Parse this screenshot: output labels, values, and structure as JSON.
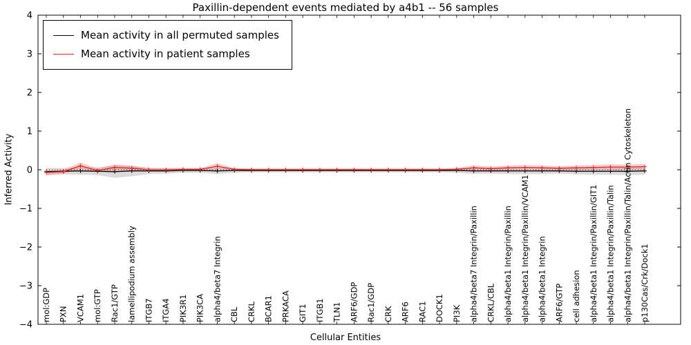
{
  "chart_data": {
    "type": "line",
    "title": "Paxillin-dependent events mediated by a4b1 -- 56 samples",
    "xlabel": "Cellular Entities",
    "ylabel": "Inferred Activity",
    "ylim": [
      -4,
      4
    ],
    "yticks": [
      -4,
      -3,
      -2,
      -1,
      0,
      1,
      2,
      3,
      4
    ],
    "grid": false,
    "legend_position": "upper left",
    "legend": [
      {
        "label": "Mean activity in all permuted samples",
        "color": "#000000"
      },
      {
        "label": "Mean activity in patient samples",
        "color": "#dd2222"
      }
    ],
    "categories": [
      "mol:GDP",
      "PXN",
      "VCAM1",
      "mol:GTP",
      "Rac1/GTP",
      "lamellipodium assembly",
      "ITGB7",
      "ITGA4",
      "PIK3R1",
      "PIK3CA",
      "alpha4/beta7 Integrin",
      "CBL",
      "CRKL",
      "BCAR1",
      "PRKACA",
      "GIT1",
      "ITGB1",
      "TLN1",
      "ARF6/GDP",
      "Rac1/GDP",
      "CRK",
      "ARF6",
      "RAC1",
      "DOCK1",
      "PI3K",
      "alpha4/beta7 Integrin/Paxillin",
      "CRKL/CBL",
      "alpha4/beta1 Integrin/Paxillin",
      "alpha4/beta1 Integrin/Paxillin/VCAM1",
      "alpha4/beta1 Integrin",
      "ARF6/GTP",
      "cell adhesion",
      "alpha4/beta1 Integrin/Paxillin/GIT1",
      "alpha4/beta1 Integrin/Paxillin/Talin",
      "alpha4/beta1 Integrin/Paxillin/Talin/Actin Cytoskeleton",
      "p130Cas/Crk/Dock1"
    ],
    "series": [
      {
        "name": "Mean activity in all permuted samples",
        "color": "#000000",
        "band_color": "#999999",
        "values": [
          -0.05,
          -0.04,
          -0.03,
          -0.04,
          -0.05,
          -0.03,
          -0.03,
          -0.03,
          -0.02,
          -0.02,
          -0.03,
          -0.02,
          -0.02,
          -0.02,
          -0.02,
          -0.02,
          -0.02,
          -0.02,
          -0.02,
          -0.02,
          -0.02,
          -0.02,
          -0.02,
          -0.02,
          -0.02,
          -0.03,
          -0.03,
          -0.03,
          -0.03,
          -0.03,
          -0.03,
          -0.04,
          -0.04,
          -0.04,
          -0.04,
          -0.03
        ],
        "band": [
          0.1,
          0.08,
          0.1,
          0.1,
          0.16,
          0.14,
          0.08,
          0.07,
          0.06,
          0.06,
          0.08,
          0.06,
          0.05,
          0.05,
          0.05,
          0.05,
          0.05,
          0.05,
          0.05,
          0.05,
          0.05,
          0.05,
          0.05,
          0.05,
          0.06,
          0.08,
          0.07,
          0.08,
          0.09,
          0.08,
          0.07,
          0.08,
          0.09,
          0.09,
          0.1,
          0.1
        ]
      },
      {
        "name": "Mean activity in patient samples",
        "color": "#dd2222",
        "band_color": "#ff6666",
        "values": [
          -0.07,
          -0.05,
          0.1,
          -0.02,
          0.06,
          0.04,
          0.0,
          0.0,
          0.01,
          0.01,
          0.09,
          0.01,
          0.0,
          0.0,
          0.0,
          0.0,
          0.0,
          0.0,
          0.0,
          0.0,
          0.0,
          0.0,
          0.0,
          0.0,
          0.01,
          0.05,
          0.03,
          0.05,
          0.06,
          0.05,
          0.04,
          0.05,
          0.06,
          0.07,
          0.07,
          0.08
        ],
        "band": [
          0.06,
          0.05,
          0.09,
          0.05,
          0.08,
          0.06,
          0.04,
          0.04,
          0.03,
          0.03,
          0.08,
          0.03,
          0.03,
          0.03,
          0.03,
          0.03,
          0.03,
          0.03,
          0.03,
          0.03,
          0.03,
          0.03,
          0.03,
          0.03,
          0.04,
          0.06,
          0.05,
          0.06,
          0.06,
          0.06,
          0.05,
          0.06,
          0.06,
          0.07,
          0.07,
          0.07
        ]
      }
    ]
  }
}
